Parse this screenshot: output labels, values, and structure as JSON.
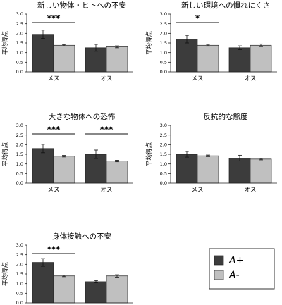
{
  "chart_data": [
    {
      "type": "bar",
      "title": "新しい物体・ヒトへの不安",
      "ylabel": "平均得点",
      "ylim": [
        0,
        3
      ],
      "yticks": [
        "0.0",
        "0.5",
        "1.0",
        "1.5",
        "2.0",
        "2.5",
        "3.0"
      ],
      "categories": [
        "メス",
        "オス"
      ],
      "series": [
        {
          "name": "A+",
          "values": [
            1.95,
            1.25
          ],
          "errors": [
            0.22,
            0.18
          ]
        },
        {
          "name": "A-",
          "values": [
            1.38,
            1.3
          ],
          "errors": [
            0.04,
            0.05
          ]
        }
      ],
      "annotations": [
        {
          "category": "メス",
          "text": "***"
        }
      ]
    },
    {
      "type": "bar",
      "title": "新しい環境への慣れにくさ",
      "ylabel": "平均得点",
      "ylim": [
        0,
        3
      ],
      "yticks": [
        "0.0",
        "0.5",
        "1.0",
        "1.5",
        "2.0",
        "2.5",
        "3.0"
      ],
      "categories": [
        "メス",
        "オス"
      ],
      "series": [
        {
          "name": "A+",
          "values": [
            1.7,
            1.25
          ],
          "errors": [
            0.2,
            0.1
          ]
        },
        {
          "name": "A-",
          "values": [
            1.38,
            1.38
          ],
          "errors": [
            0.05,
            0.07
          ]
        }
      ],
      "annotations": [
        {
          "category": "メス",
          "text": "*"
        }
      ]
    },
    {
      "type": "bar",
      "title": "大きな物体への恐怖",
      "ylabel": "平均得点",
      "ylim": [
        0,
        3
      ],
      "yticks": [
        "0.0",
        "0.5",
        "1.0",
        "1.5",
        "2.0",
        "2.5",
        "3.0"
      ],
      "categories": [
        "メス",
        "オス"
      ],
      "series": [
        {
          "name": "A+",
          "values": [
            1.8,
            1.5
          ],
          "errors": [
            0.22,
            0.22
          ]
        },
        {
          "name": "A-",
          "values": [
            1.4,
            1.15
          ],
          "errors": [
            0.04,
            0.04
          ]
        }
      ],
      "annotations": [
        {
          "category": "メス",
          "text": "***"
        },
        {
          "category": "オス",
          "text": "***"
        }
      ]
    },
    {
      "type": "bar",
      "title": "反抗的な態度",
      "ylabel": "平均得点",
      "ylim": [
        0,
        3
      ],
      "yticks": [
        "0.0",
        "0.5",
        "1.0",
        "1.5",
        "2.0",
        "2.5",
        "3.0"
      ],
      "categories": [
        "メス",
        "オス"
      ],
      "series": [
        {
          "name": "A+",
          "values": [
            1.5,
            1.3
          ],
          "errors": [
            0.15,
            0.15
          ]
        },
        {
          "name": "A-",
          "values": [
            1.42,
            1.25
          ],
          "errors": [
            0.04,
            0.04
          ]
        }
      ],
      "annotations": []
    },
    {
      "type": "bar",
      "title": "身体接触への不安",
      "ylabel": "平均得点",
      "ylim": [
        0,
        3
      ],
      "yticks": [
        "0.0",
        "0.5",
        "1.0",
        "1.5",
        "2.0",
        "2.5",
        "3.0"
      ],
      "categories": [
        "メス",
        "オス"
      ],
      "series": [
        {
          "name": "A+",
          "values": [
            2.1,
            1.1
          ],
          "errors": [
            0.2,
            0.06
          ]
        },
        {
          "name": "A-",
          "values": [
            1.4,
            1.4
          ],
          "errors": [
            0.04,
            0.06
          ]
        }
      ],
      "annotations": [
        {
          "category": "メス",
          "text": "***"
        }
      ]
    }
  ],
  "legend": {
    "position": "bottom-right",
    "items": [
      {
        "label": "A+",
        "color": "#3c3c3c"
      },
      {
        "label": "A-",
        "color": "#c0c0c0"
      }
    ]
  }
}
